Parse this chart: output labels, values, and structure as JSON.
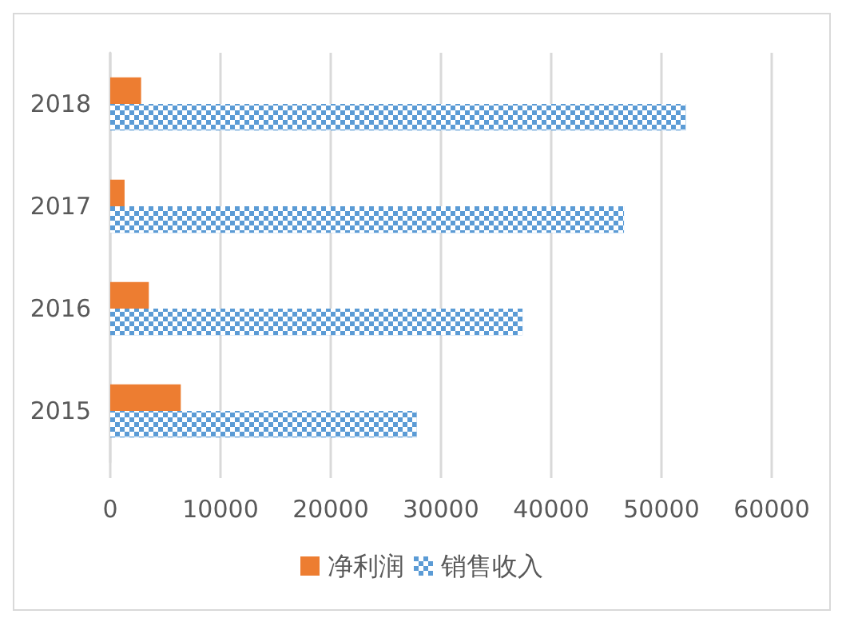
{
  "chart_data": {
    "type": "bar",
    "orientation": "horizontal",
    "categories": [
      "2018",
      "2017",
      "2016",
      "2015"
    ],
    "series": [
      {
        "name": "净利润",
        "color": "#ed7d31",
        "values": [
          2800,
          1300,
          3500,
          6400
        ]
      },
      {
        "name": "销售收入",
        "color": "#5b9bd5",
        "values": [
          52200,
          46600,
          37400,
          27800
        ]
      }
    ],
    "xlim": [
      0,
      60000
    ],
    "xticks": [
      0,
      10000,
      20000,
      30000,
      40000,
      50000,
      60000
    ],
    "grid": "x",
    "legend": "bottom"
  }
}
